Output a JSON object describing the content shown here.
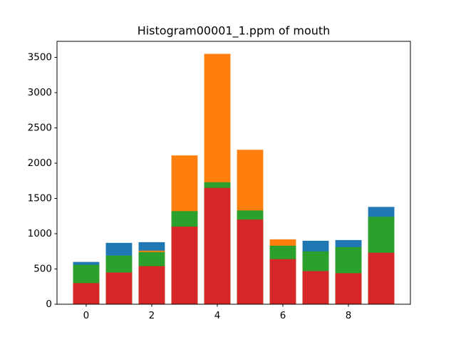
{
  "chart_data": {
    "type": "bar",
    "title": "Histogram00001_1.ppm of mouth",
    "x": [
      0,
      1,
      2,
      3,
      4,
      5,
      6,
      7,
      8,
      9
    ],
    "bar_width": 0.8,
    "series": [
      {
        "color": "#1f77b4",
        "values": [
          600,
          870,
          880,
          1200,
          1500,
          1000,
          700,
          900,
          910,
          1380
        ]
      },
      {
        "color": "#ff7f0e",
        "values": [
          500,
          600,
          760,
          2110,
          3550,
          2190,
          920,
          600,
          600,
          900
        ]
      },
      {
        "color": "#2ca02c",
        "values": [
          560,
          690,
          740,
          1320,
          1730,
          1330,
          830,
          750,
          810,
          1240
        ]
      },
      {
        "color": "#d62728",
        "values": [
          300,
          450,
          540,
          1100,
          1650,
          1200,
          640,
          470,
          440,
          730
        ]
      }
    ],
    "xlim": [
      -0.89,
      9.89
    ],
    "xticks": [
      0,
      2,
      4,
      6,
      8
    ],
    "ylim": [
      0,
      3727.5
    ],
    "yticks": [
      0,
      500,
      1000,
      1500,
      2000,
      2500,
      3000,
      3500
    ]
  }
}
